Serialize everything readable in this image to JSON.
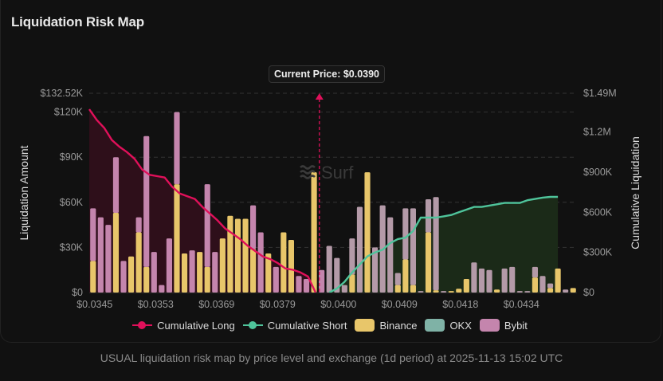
{
  "title": "Liquidation Risk Map",
  "caption": "USUAL liquidation risk map by price level and exchange (1d period) at 2025-11-13 15:02 UTC",
  "tooltip": "Current Price: $0.0390",
  "watermark": "Surf",
  "colors": {
    "long": "#e0105a",
    "short": "#4fc49b",
    "binance": "#e8c66a",
    "okx": "#7fb2a6",
    "bybit": "#c485ad",
    "long_fill": "#2e0f1a",
    "short_fill": "#1b2a18",
    "grid": "#333333"
  },
  "legend": [
    {
      "label": "Cumulative Long",
      "type": "line",
      "key": "long"
    },
    {
      "label": "Cumulative Short",
      "type": "line",
      "key": "short"
    },
    {
      "label": "Binance",
      "type": "box",
      "key": "binance"
    },
    {
      "label": "OKX",
      "type": "box",
      "key": "okx"
    },
    {
      "label": "Bybit",
      "type": "box",
      "key": "bybit"
    }
  ],
  "chart_data": {
    "type": "bar",
    "title": "Liquidation Risk Map",
    "xlabel": "",
    "ylabel": "Liquidation Amount",
    "y2label": "Cumulative Liquidation",
    "ylim": [
      0,
      132520
    ],
    "y2lim": [
      0,
      1490000
    ],
    "yticks": [
      "$0",
      "$30K",
      "$60K",
      "$90K",
      "$120K",
      "$132.52K"
    ],
    "yticks_values": [
      0,
      30000,
      60000,
      90000,
      120000,
      132520
    ],
    "y2ticks": [
      "$0",
      "$300K",
      "$600K",
      "$900K",
      "$1.2M",
      "$1.49M"
    ],
    "y2ticks_values": [
      0,
      300000,
      600000,
      900000,
      1200000,
      1490000
    ],
    "xticks": [
      "$0.0345",
      "$0.0353",
      "$0.0369",
      "$0.0379",
      "$0.0400",
      "$0.0409",
      "$0.0418",
      "$0.0434"
    ],
    "xticks_index": [
      0,
      8,
      16,
      24,
      32,
      40,
      48,
      56
    ],
    "current_price": "$0.0390",
    "current_price_index": 29.7,
    "grid": true,
    "legend_position": "bottom",
    "series": [
      {
        "name": "Binance",
        "stack": "exchange",
        "values": [
          21000,
          0,
          0,
          53000,
          0,
          24000,
          40000,
          17000,
          0,
          0,
          0,
          72000,
          26000,
          0,
          27000,
          17000,
          0,
          36000,
          51000,
          49000,
          49000,
          29000,
          0,
          26000,
          0,
          40000,
          35000,
          0,
          0,
          80000,
          0,
          0,
          0,
          0,
          12000,
          0,
          80000,
          0,
          0,
          0,
          5000,
          22000,
          5000,
          0,
          40000,
          1500,
          0,
          1000,
          2500,
          9000,
          0,
          0,
          0,
          2000,
          0,
          0,
          0,
          0,
          10000,
          0,
          3000,
          16000,
          0,
          3000
        ]
      },
      {
        "name": "OKX",
        "stack": "exchange",
        "values": [
          0,
          0,
          0,
          0,
          0,
          0,
          0,
          0,
          0,
          0,
          0,
          0,
          0,
          0,
          0,
          0,
          0,
          0,
          0,
          0,
          0,
          0,
          0,
          0,
          0,
          0,
          0,
          0,
          0,
          0,
          0,
          0,
          0,
          0,
          0,
          0,
          0,
          0,
          0,
          0,
          0,
          0,
          0,
          0,
          0,
          0,
          0,
          0,
          0,
          0,
          0,
          0,
          0,
          0,
          0,
          0,
          0,
          0,
          0,
          0,
          0,
          0,
          0,
          0
        ]
      },
      {
        "name": "Bybit",
        "stack": "exchange",
        "values": [
          35000,
          50000,
          45000,
          37000,
          21000,
          0,
          10000,
          87000,
          27000,
          5000,
          36000,
          48000,
          0,
          28000,
          0,
          55000,
          27000,
          0,
          0,
          0,
          0,
          29000,
          40000,
          0,
          17000,
          0,
          0,
          11000,
          9000,
          0,
          15000,
          31000,
          23000,
          5000,
          24000,
          57000,
          0,
          30000,
          58000,
          50000,
          8000,
          34000,
          51000,
          1000,
          22000,
          62000,
          1000,
          0,
          0,
          0,
          20000,
          16000,
          15000,
          0,
          16000,
          17000,
          1000,
          1000,
          7000,
          11000,
          3000,
          0,
          2000,
          0
        ]
      },
      {
        "name": "Cumulative Long",
        "axis": "y2",
        "type": "line",
        "x_range_index": [
          0,
          29.7
        ],
        "values": [
          1370000,
          1290000,
          1230000,
          1140000,
          1090000,
          1050000,
          1000000,
          920000,
          880000,
          870000,
          860000,
          790000,
          740000,
          720000,
          700000,
          640000,
          590000,
          540000,
          480000,
          440000,
          400000,
          350000,
          310000,
          270000,
          250000,
          220000,
          180000,
          170000,
          150000,
          120000,
          0
        ]
      },
      {
        "name": "Cumulative Short",
        "axis": "y2",
        "type": "line",
        "x_range_index": [
          31.5,
          61.5
        ],
        "values": [
          0,
          30000,
          80000,
          150000,
          210000,
          270000,
          300000,
          320000,
          370000,
          400000,
          410000,
          460000,
          560000,
          560000,
          560000,
          570000,
          580000,
          600000,
          620000,
          640000,
          640000,
          650000,
          660000,
          670000,
          670000,
          670000,
          690000,
          700000,
          710000,
          715000,
          715000
        ]
      }
    ]
  }
}
